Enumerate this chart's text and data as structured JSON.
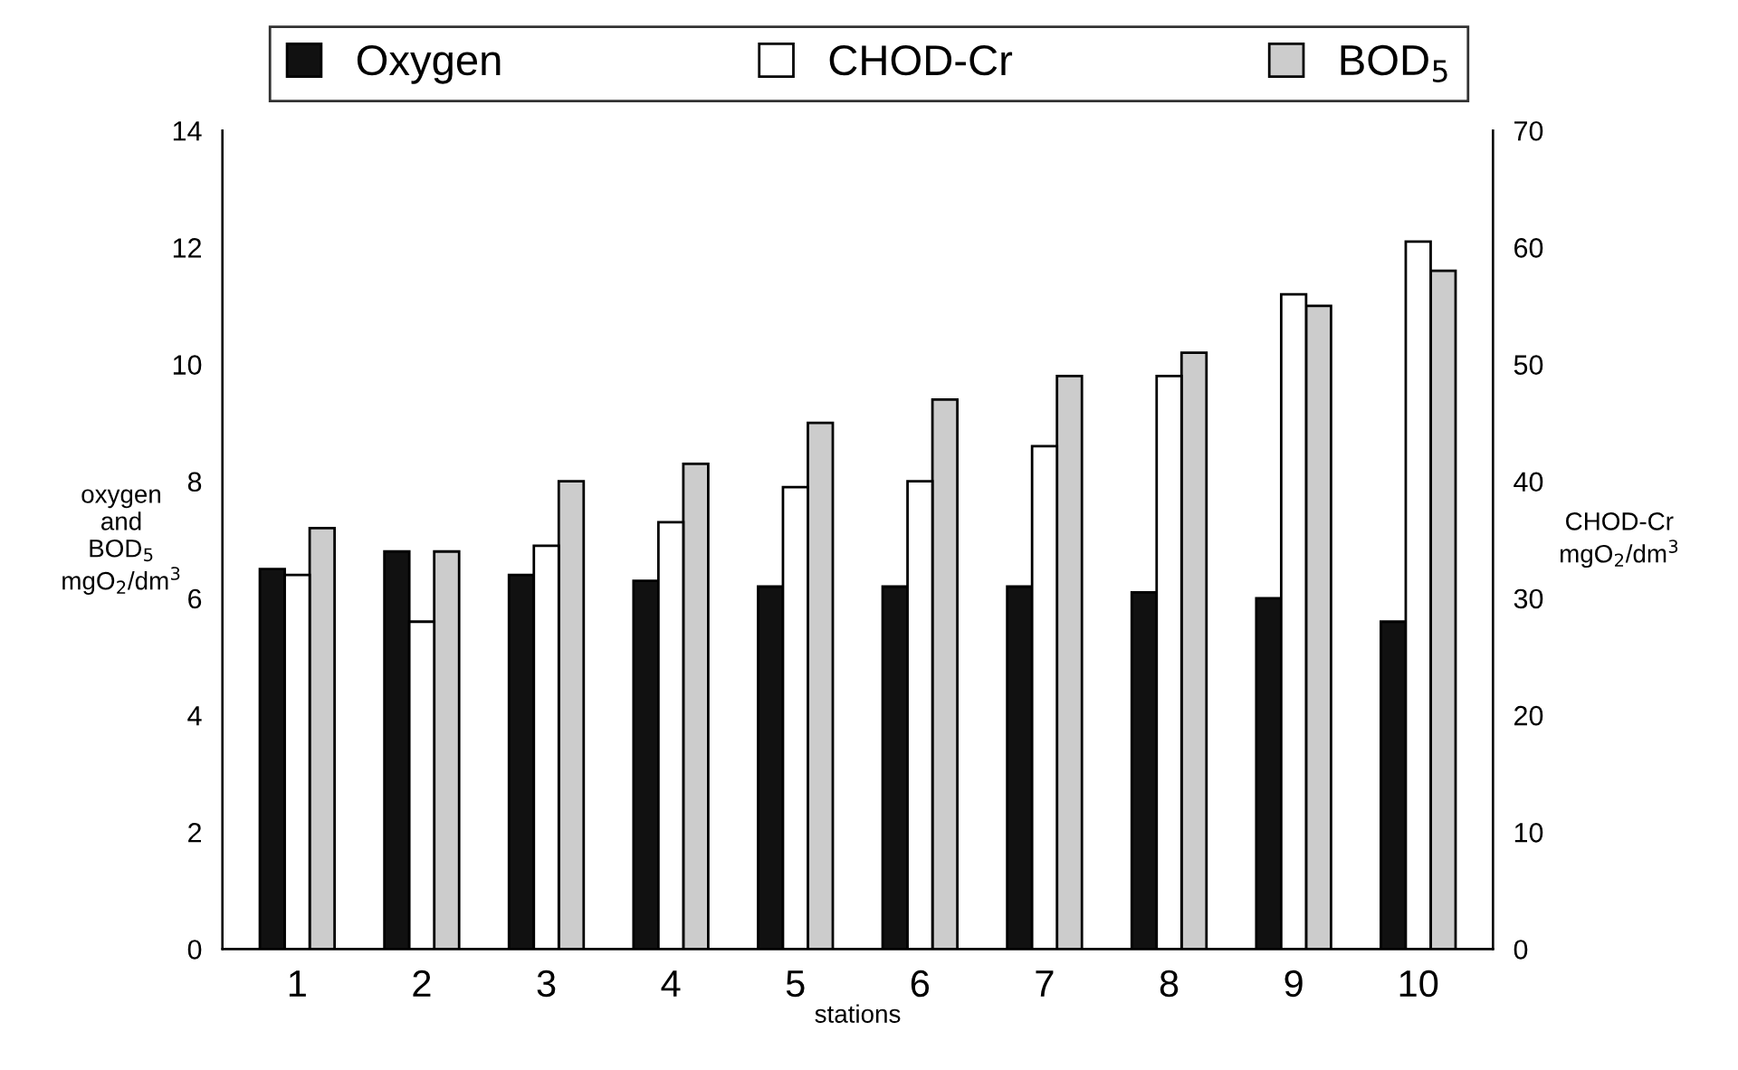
{
  "chart_data": {
    "type": "bar",
    "xlabel": "stations",
    "ylabel": "oxygen\nand\nBOD$_{5}$\nmgO$_{2}$/dm$^{3}$",
    "y2label": "CHOD-Cr\nmgO$_{2}$/dm$^{3}$",
    "categories": [
      "1",
      "2",
      "3",
      "4",
      "5",
      "6",
      "7",
      "8",
      "9",
      "10"
    ],
    "series": [
      {
        "name": "Oxygen",
        "color": "#111111",
        "values": [
          6.5,
          6.8,
          6.4,
          6.3,
          6.2,
          6.2,
          6.2,
          6.1,
          6.0,
          5.6
        ]
      },
      {
        "name": "CHOD-Cr",
        "color": "#ffffff",
        "axis": "y2",
        "values": [
          32,
          28,
          34.5,
          36.5,
          39.5,
          40,
          43,
          49,
          56,
          60.5
        ]
      },
      {
        "name": "BOD$_{5}$",
        "color": "#cccccc",
        "values": [
          7.2,
          6.8,
          8.0,
          8.3,
          9.0,
          9.4,
          9.8,
          10.2,
          11.0,
          11.6
        ]
      }
    ],
    "ylim": [
      0,
      14
    ],
    "yticks": [
      0,
      2,
      4,
      6,
      8,
      10,
      12,
      14
    ],
    "y2lim": [
      0,
      70
    ],
    "y2ticks": [
      0,
      10,
      20,
      30,
      40,
      50,
      60,
      70
    ],
    "legend": "top",
    "grid": false
  }
}
